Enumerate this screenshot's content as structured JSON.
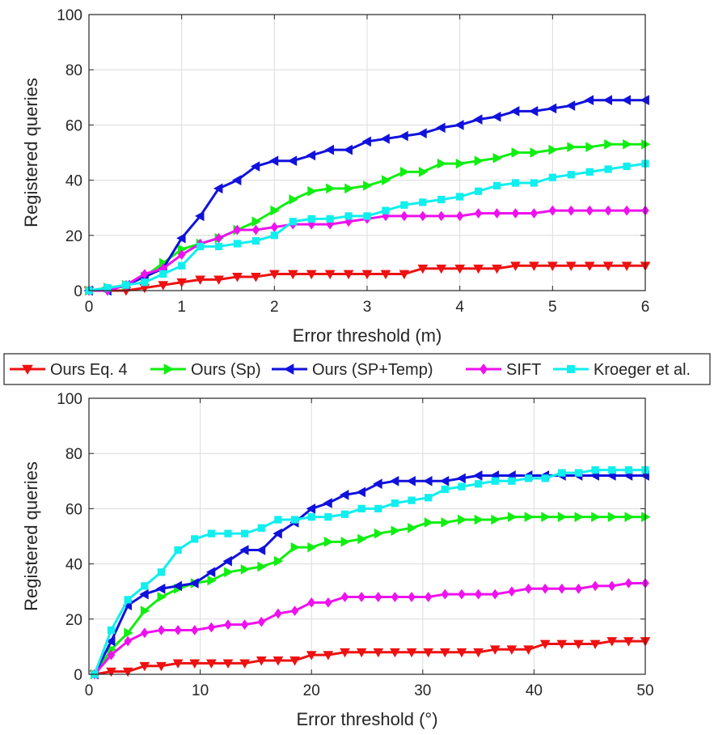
{
  "legend": [
    {
      "label": "Ours Eq. 4",
      "color": "#ee1111",
      "marker": "triangle-down"
    },
    {
      "label": "Ours (Sp)",
      "color": "#11ee11",
      "marker": "triangle-right"
    },
    {
      "label": "Ours (SP+Temp)",
      "color": "#1111dd",
      "marker": "triangle-left"
    },
    {
      "label": "SIFT",
      "color": "#ee11ee",
      "marker": "diamond"
    },
    {
      "label": "Kroeger et al.",
      "color": "#11eeee",
      "marker": "square"
    }
  ],
  "chart_data": [
    {
      "type": "line",
      "xlabel": "Error threshold (m)",
      "ylabel": "Registered queries",
      "xlim": [
        0,
        6
      ],
      "ylim": [
        0,
        100
      ],
      "xticks": [
        "0",
        "1",
        "2",
        "3",
        "4",
        "5",
        "6"
      ],
      "yticks": [
        "0",
        "20",
        "40",
        "60",
        "80",
        "100"
      ],
      "grid": true,
      "x": [
        0,
        0.2,
        0.4,
        0.6,
        0.8,
        1.0,
        1.2,
        1.4,
        1.6,
        1.8,
        2.0,
        2.2,
        2.4,
        2.6,
        2.8,
        3.0,
        3.2,
        3.4,
        3.6,
        3.8,
        4.0,
        4.2,
        4.4,
        4.6,
        4.8,
        5.0,
        5.2,
        5.4,
        5.6,
        5.8,
        6.0
      ],
      "series": [
        {
          "name": "Ours Eq. 4",
          "values": [
            0,
            0,
            0,
            1,
            2,
            3,
            4,
            4,
            5,
            5,
            6,
            6,
            6,
            6,
            6,
            6,
            6,
            6,
            8,
            8,
            8,
            8,
            8,
            9,
            9,
            9,
            9,
            9,
            9,
            9,
            9
          ]
        },
        {
          "name": "Ours (Sp)",
          "values": [
            0,
            1,
            2,
            5,
            10,
            15,
            17,
            19,
            22,
            25,
            29,
            33,
            36,
            37,
            37,
            38,
            40,
            43,
            43,
            46,
            46,
            47,
            48,
            50,
            50,
            51,
            52,
            52,
            53,
            53,
            53
          ]
        },
        {
          "name": "Ours (SP+Temp)",
          "values": [
            0,
            0,
            2,
            5,
            8,
            19,
            27,
            37,
            40,
            45,
            47,
            47,
            49,
            51,
            51,
            54,
            55,
            56,
            57,
            59,
            60,
            62,
            63,
            65,
            65,
            66,
            67,
            69,
            69,
            69,
            69
          ]
        },
        {
          "name": "SIFT",
          "values": [
            0,
            0,
            2,
            6,
            8,
            13,
            17,
            19,
            22,
            22,
            23,
            24,
            24,
            24,
            25,
            26,
            27,
            27,
            27,
            27,
            27,
            28,
            28,
            28,
            28,
            29,
            29,
            29,
            29,
            29,
            29
          ]
        },
        {
          "name": "Kroeger et al.",
          "values": [
            0,
            1,
            2,
            3,
            6,
            9,
            16,
            16,
            17,
            18,
            20,
            25,
            26,
            26,
            27,
            27,
            29,
            31,
            32,
            33,
            34,
            36,
            38,
            39,
            39,
            41,
            42,
            43,
            44,
            45,
            46
          ]
        }
      ]
    },
    {
      "type": "line",
      "xlabel": "Error threshold (°)",
      "ylabel": "Registered queries",
      "xlim": [
        0,
        50
      ],
      "ylim": [
        0,
        100
      ],
      "xticks": [
        "0",
        "10",
        "20",
        "30",
        "40",
        "50"
      ],
      "yticks": [
        "0",
        "20",
        "40",
        "60",
        "80",
        "100"
      ],
      "grid": true,
      "x": [
        0.5,
        2,
        3.5,
        5,
        6.5,
        8,
        9.5,
        11,
        12.5,
        14,
        15.5,
        17,
        18.5,
        20,
        21.5,
        23,
        24.5,
        26,
        27.5,
        29,
        30.5,
        32,
        33.5,
        35,
        36.5,
        38,
        39.5,
        41,
        42.5,
        44,
        45.5,
        47,
        48.5,
        50
      ],
      "series": [
        {
          "name": "Ours Eq. 4",
          "values": [
            0,
            1,
            1,
            3,
            3,
            4,
            4,
            4,
            4,
            4,
            5,
            5,
            5,
            7,
            7,
            8,
            8,
            8,
            8,
            8,
            8,
            8,
            8,
            8,
            9,
            9,
            9,
            11,
            11,
            11,
            11,
            12,
            12,
            12
          ]
        },
        {
          "name": "Ours (Sp)",
          "values": [
            0,
            9,
            15,
            23,
            28,
            31,
            33,
            34,
            37,
            38,
            39,
            41,
            46,
            46,
            48,
            48,
            49,
            51,
            52,
            53,
            55,
            55,
            56,
            56,
            56,
            57,
            57,
            57,
            57,
            57,
            57,
            57,
            57,
            57
          ]
        },
        {
          "name": "Ours (SP+Temp)",
          "values": [
            0,
            12,
            25,
            29,
            31,
            32,
            33,
            37,
            41,
            45,
            45,
            51,
            55,
            60,
            62,
            65,
            66,
            69,
            70,
            70,
            70,
            70,
            71,
            72,
            72,
            72,
            72,
            72,
            72,
            72,
            72,
            72,
            72,
            72
          ]
        },
        {
          "name": "SIFT",
          "values": [
            0,
            7,
            12,
            15,
            16,
            16,
            16,
            17,
            18,
            18,
            19,
            22,
            23,
            26,
            26,
            28,
            28,
            28,
            28,
            28,
            28,
            29,
            29,
            29,
            29,
            30,
            31,
            31,
            31,
            31,
            32,
            32,
            33,
            33
          ]
        },
        {
          "name": "Kroeger et al.",
          "values": [
            0,
            16,
            27,
            32,
            37,
            45,
            49,
            51,
            51,
            51,
            53,
            56,
            56,
            57,
            57,
            58,
            60,
            60,
            62,
            63,
            64,
            67,
            68,
            69,
            70,
            70,
            71,
            71,
            73,
            73,
            74,
            74,
            74,
            74
          ]
        }
      ]
    }
  ]
}
